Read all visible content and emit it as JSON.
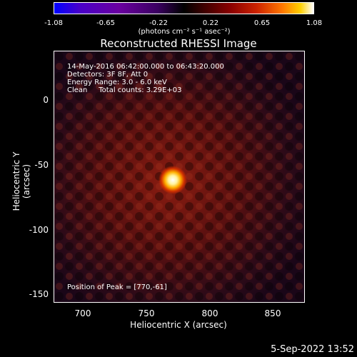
{
  "colorbar": {
    "ticks": [
      "-1.08",
      "-0.65",
      "-0.22",
      "0.22",
      "0.65",
      "1.08"
    ],
    "units": "(photons cm⁻² s⁻¹ asec⁻²)"
  },
  "title": "Reconstructed RHESSI Image",
  "info": {
    "time": "14-May-2016 06:42:00.000 to 06:43:20.000",
    "detectors": "Detectors: 3F 8F, Att 0",
    "energy": "Energy Range: 3.0 - 6.0 keV",
    "clean": "Clean     Total counts: 3.29E+03",
    "peak": "Position of Peak = [770,-61]"
  },
  "axes": {
    "ylabel": "Heliocentric Y (arcsec)",
    "xlabel": "Heliocentric X (arcsec)",
    "yticks": [
      "0",
      "-50",
      "-100",
      "-150"
    ],
    "xticks": [
      "700",
      "750",
      "800",
      "850"
    ]
  },
  "footer_date": "5-Sep-2022 13:52",
  "colors": {
    "background": "#000000",
    "peak": "#ffffe0",
    "image_base": "#2a0810"
  }
}
